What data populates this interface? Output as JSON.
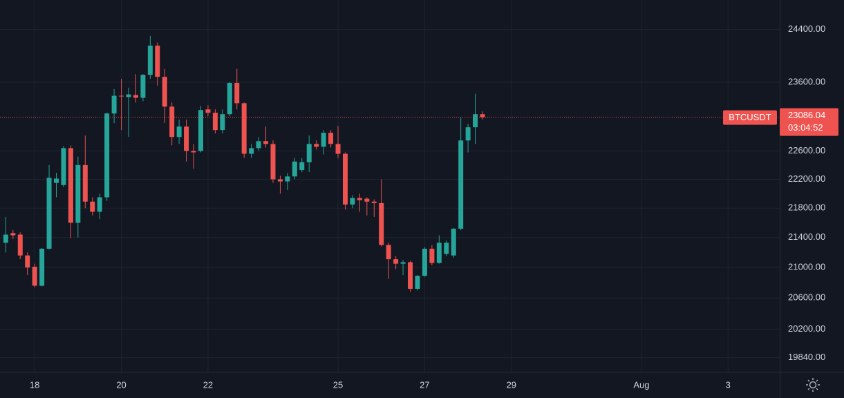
{
  "chart_data": {
    "type": "candlestick",
    "symbol": "BTCUSDT",
    "countdown": "03:04:52",
    "last_price": 23086.04,
    "log_scale": true,
    "grid": true,
    "up_color": "#26a69a",
    "down_color": "#ef5350",
    "x": [
      8,
      12,
      16,
      20,
      24,
      28,
      32,
      36,
      40,
      44,
      48,
      52,
      56,
      60,
      64,
      68,
      72,
      76,
      80,
      84,
      88,
      92,
      96,
      100,
      104,
      108,
      112,
      116,
      120,
      124,
      128,
      132,
      136,
      140,
      144,
      148,
      152,
      156,
      160,
      164,
      168,
      172,
      176,
      180,
      184,
      188,
      192,
      196,
      200,
      204,
      208,
      212,
      216,
      220,
      224,
      228,
      232,
      236,
      240,
      244,
      248,
      252,
      256,
      260,
      264,
      268,
      272
    ],
    "open": [
      21330,
      21460,
      21440,
      21160,
      21010,
      20760,
      21250,
      22150,
      22120,
      22640,
      21600,
      22400,
      21890,
      21750,
      21950,
      23140,
      23400,
      23380,
      23410,
      23370,
      23710,
      24150,
      23680,
      23240,
      22800,
      22950,
      22600,
      22600,
      23200,
      23150,
      22900,
      23130,
      23590,
      23290,
      22560,
      22640,
      22740,
      22700,
      22200,
      22170,
      22240,
      22330,
      22440,
      22700,
      22660,
      22860,
      22700,
      22560,
      21850,
      21940,
      21930,
      21890,
      21870,
      21300,
      21110,
      21050,
      21070,
      20720,
      20890,
      21250,
      21060,
      21180,
      21160,
      21520,
      22750,
      22940,
      23130
    ],
    "high": [
      21680,
      21500,
      21470,
      21200,
      21050,
      21260,
      22400,
      22290,
      22670,
      22680,
      22520,
      22820,
      21950,
      22000,
      23150,
      23500,
      23650,
      23520,
      23720,
      23720,
      24300,
      24200,
      23800,
      23300,
      23050,
      23050,
      22700,
      23250,
      23260,
      23200,
      23200,
      23600,
      23800,
      23300,
      22700,
      22800,
      22950,
      22750,
      22250,
      22290,
      22500,
      22500,
      22820,
      22750,
      22900,
      22900,
      22960,
      22580,
      21980,
      22000,
      21950,
      21920,
      22200,
      21330,
      21150,
      21100,
      21090,
      20900,
      21270,
      21300,
      21430,
      21360,
      21530,
      23080,
      22990,
      23430,
      23170
    ],
    "low": [
      21200,
      21380,
      21110,
      20900,
      20740,
      20750,
      21240,
      21950,
      22090,
      21390,
      21400,
      21800,
      21700,
      21650,
      21900,
      23000,
      22900,
      22800,
      23300,
      23320,
      23650,
      23550,
      23000,
      22680,
      22700,
      22450,
      22350,
      22580,
      23100,
      22850,
      22850,
      23100,
      23200,
      22500,
      22500,
      22600,
      22650,
      22150,
      22000,
      22050,
      22200,
      22300,
      22300,
      22620,
      22550,
      22650,
      22500,
      21780,
      21800,
      21750,
      21700,
      21680,
      21280,
      20850,
      20980,
      20900,
      20680,
      20700,
      20880,
      21030,
      21050,
      21150,
      21130,
      21500,
      22580,
      22700,
      23050
    ],
    "close": [
      21440,
      21430,
      21160,
      21000,
      20760,
      21250,
      22220,
      22210,
      22640,
      21600,
      22400,
      21890,
      21750,
      21950,
      23140,
      23400,
      23390,
      23420,
      23370,
      23710,
      24150,
      23680,
      23240,
      22800,
      22950,
      22600,
      22580,
      23190,
      23150,
      22900,
      23130,
      23590,
      23290,
      22560,
      22640,
      22740,
      22700,
      22200,
      22170,
      22240,
      22450,
      22440,
      22700,
      22660,
      22860,
      22700,
      22560,
      21850,
      21940,
      21910,
      21890,
      21870,
      21300,
      21110,
      21050,
      21070,
      20720,
      20890,
      21250,
      21060,
      21330,
      21330,
      21520,
      22750,
      22940,
      23130,
      23086.04
    ],
    "xlim": [
      4.8,
      436.6
    ],
    "xticks": [
      {
        "value": 24,
        "label": "18"
      },
      {
        "value": 72,
        "label": "20"
      },
      {
        "value": 120,
        "label": "22"
      },
      {
        "value": 192,
        "label": "25"
      },
      {
        "value": 240,
        "label": "27"
      },
      {
        "value": 288,
        "label": "29"
      },
      {
        "value": 360,
        "label": "Aug"
      },
      {
        "value": 408,
        "label": "3"
      }
    ],
    "ylim": [
      19665,
      24855
    ],
    "yticks": [
      {
        "value": 24400,
        "label": "24400.00"
      },
      {
        "value": 23600,
        "label": "23600.00"
      },
      {
        "value": 22600,
        "label": "22600.00"
      },
      {
        "value": 22200,
        "label": "22200.00"
      },
      {
        "value": 21800,
        "label": "21800.00"
      },
      {
        "value": 21400,
        "label": "21400.00"
      },
      {
        "value": 21000,
        "label": "21000.00"
      },
      {
        "value": 20600,
        "label": "20600.00"
      },
      {
        "value": 20200,
        "label": "20200.00"
      },
      {
        "value": 19840,
        "label": "19840.00"
      }
    ]
  }
}
